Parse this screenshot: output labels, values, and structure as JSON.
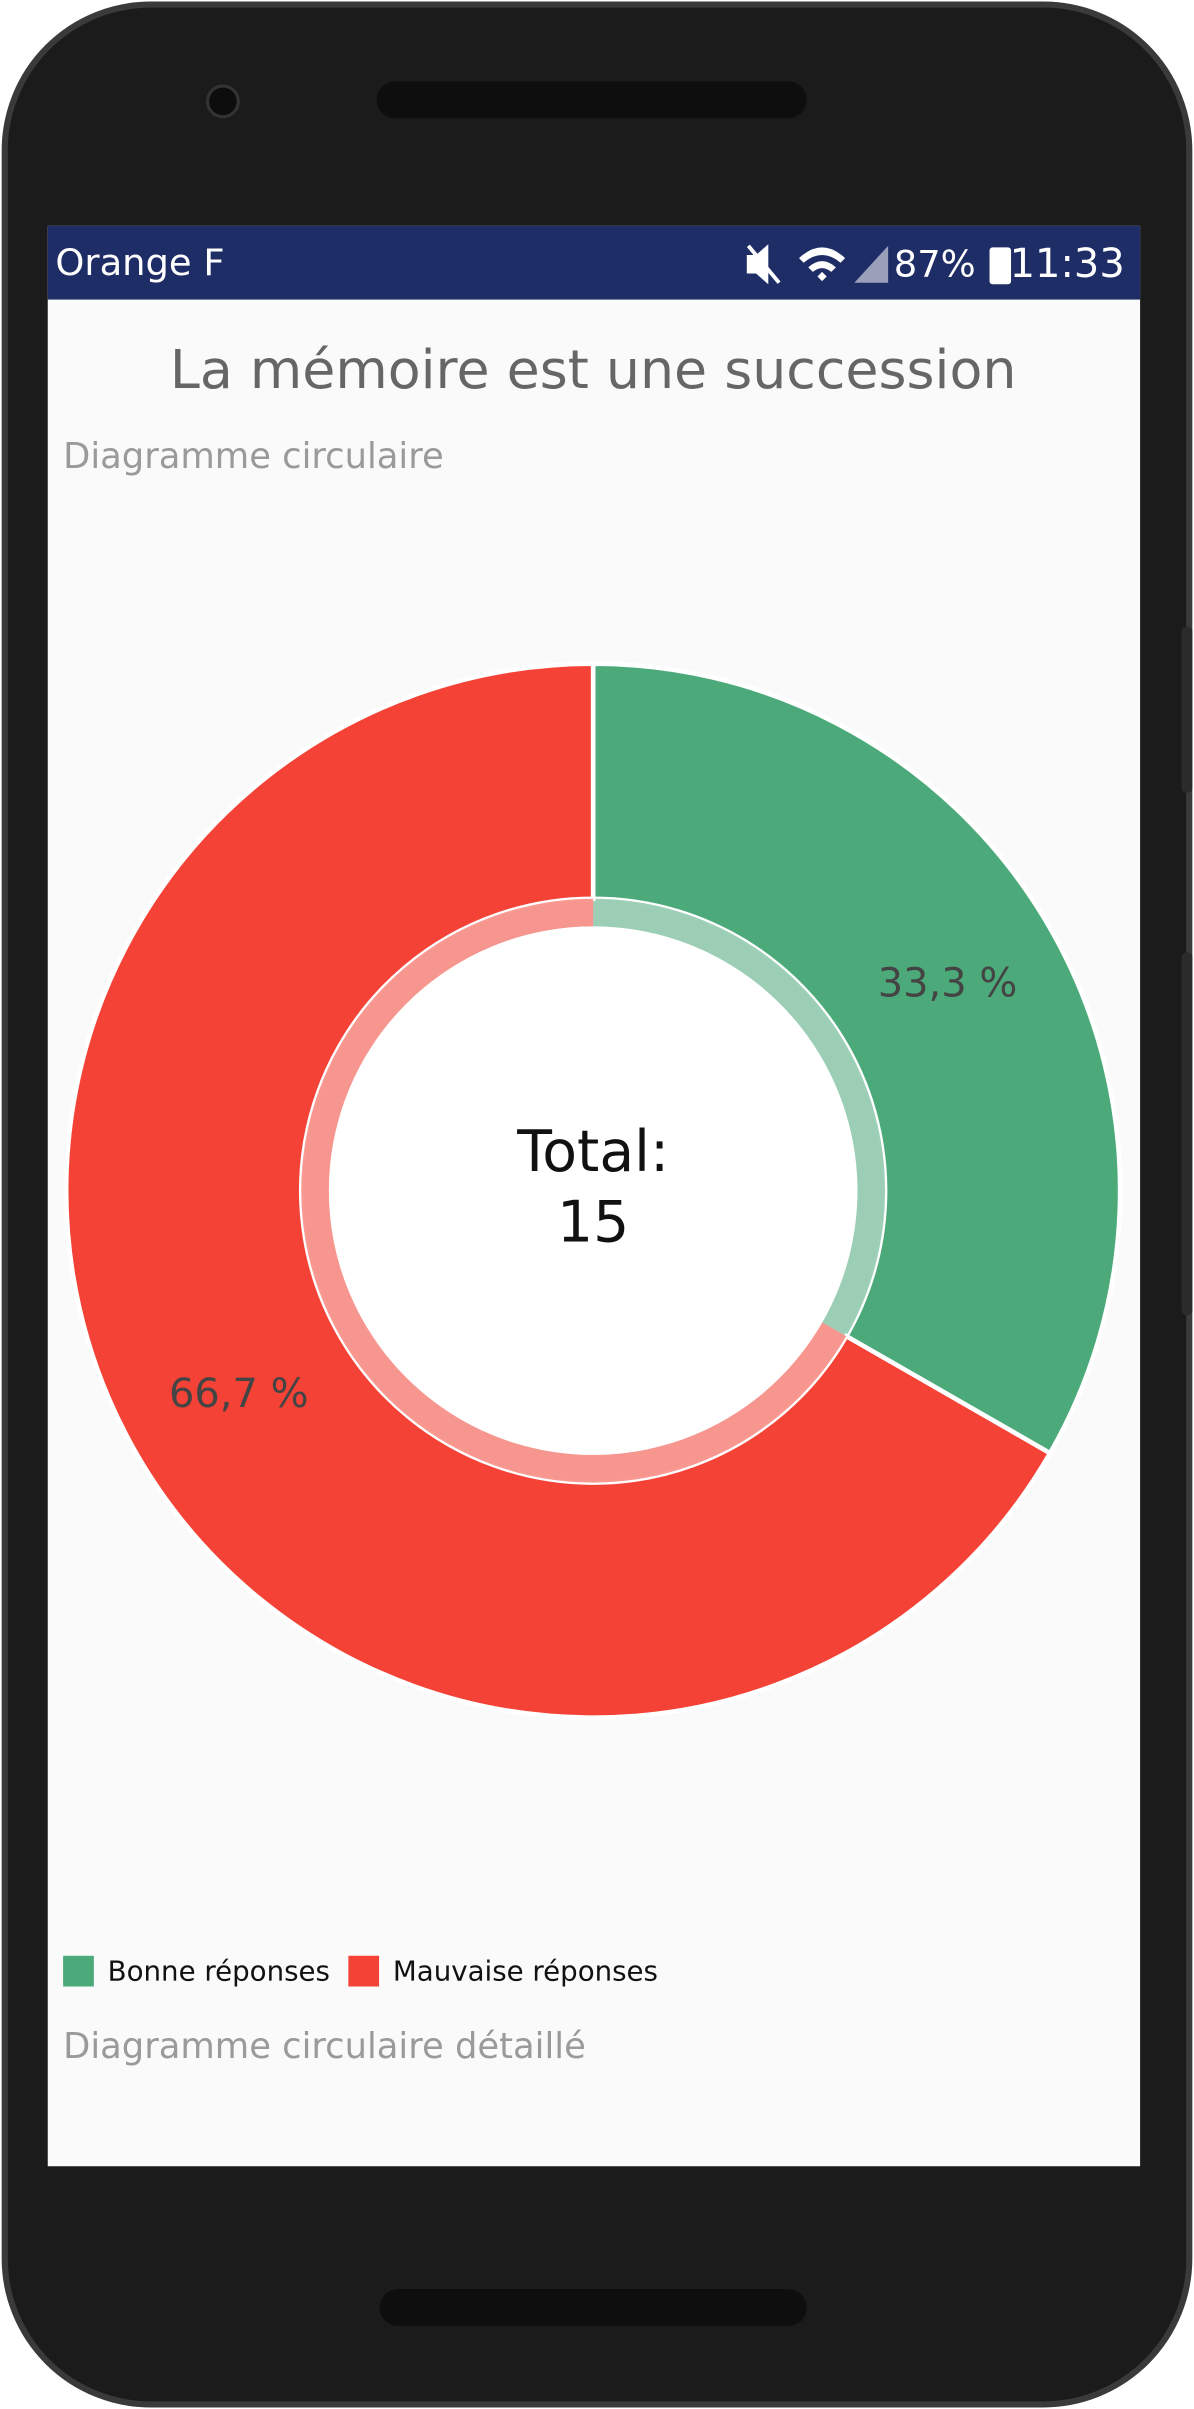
{
  "status_bar": {
    "carrier": "Orange F",
    "battery": "87%",
    "time": "11:33"
  },
  "header": {
    "title": "La mémoire est une succession",
    "subtitle": "Diagramme circulaire"
  },
  "chart_data": {
    "type": "pie",
    "categories": [
      "Bonne réponses",
      "Mauvaise réponses"
    ],
    "values": [
      33.3,
      66.7
    ],
    "value_labels": [
      "33,3 %",
      "66,7 %"
    ],
    "colors": [
      "#4caa7a",
      "#f44336"
    ],
    "center_label": "Total:",
    "center_value": 15,
    "donut": true
  },
  "footer": {
    "section": "Diagramme circulaire détaillé"
  }
}
